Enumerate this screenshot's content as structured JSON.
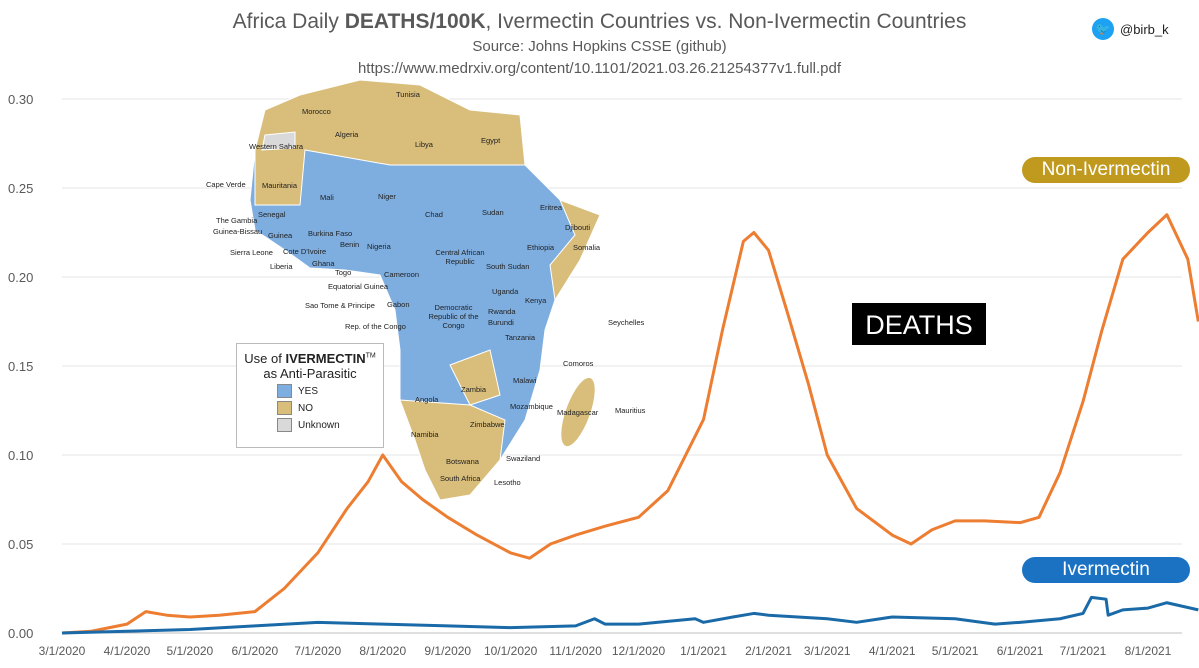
{
  "header": {
    "title_pre": "Africa Daily ",
    "title_bold": "DEATHS/100K",
    "title_post": ", Ivermectin Countries vs. Non-Ivermectin Countries",
    "source": "Source: Johns Hopkins CSSE (github)",
    "url": "https://www.medrxiv.org/content/10.1101/2021.03.26.21254377v1.full.pdf",
    "handle": "@birb_k",
    "handle_icon": "twitter-bird-icon"
  },
  "annotations": {
    "deaths_label": "DEATHS"
  },
  "map": {
    "legend": {
      "title_pre": "Use of ",
      "title_bold": "IVERMECTIN",
      "title_tm": "TM",
      "title_line2": "as Anti-Parasitic",
      "items": [
        {
          "label": "YES",
          "color": "#7eaee0"
        },
        {
          "label": "NO",
          "color": "#d9bd7a"
        },
        {
          "label": "Unknown",
          "color": "#d9d9d9"
        }
      ]
    },
    "labels": [
      "Tunisia",
      "Morocco",
      "Algeria",
      "Libya",
      "Egypt",
      "Western Sahara",
      "Mauritania",
      "Mali",
      "Niger",
      "Chad",
      "Sudan",
      "Eritrea",
      "Djibouti",
      "Cape Verde",
      "Senegal",
      "The Gambia",
      "Guinea-Bissau",
      "Guinea",
      "Sierra Leone",
      "Liberia",
      "Cote D'Ivoire",
      "Ghana",
      "Burkina Faso",
      "Benin",
      "Togo",
      "Nigeria",
      "Ethiopia",
      "Somalia",
      "Central African Republic",
      "South Sudan",
      "Cameroon",
      "Equatorial Guinea",
      "Sao Tome & Principe",
      "Gabon",
      "Rep. of the Congo",
      "Democratic Republic of the Congo",
      "Uganda",
      "Kenya",
      "Rwanda",
      "Burundi",
      "Tanzania",
      "Seychelles",
      "Comoros",
      "Angola",
      "Zambia",
      "Malawi",
      "Mozambique",
      "Madagascar",
      "Mauritius",
      "Namibia",
      "Zimbabwe",
      "Botswana",
      "Swaziland",
      "Lesotho",
      "South Africa"
    ]
  },
  "chart_data": {
    "type": "line",
    "title": "Africa Daily DEATHS/100K, Ivermectin Countries vs. Non-Ivermectin Countries",
    "xlabel": "",
    "ylabel": "",
    "ylim": [
      0,
      0.3
    ],
    "yticks": [
      "0.00",
      "0.05",
      "0.10",
      "0.15",
      "0.20",
      "0.25",
      "0.30"
    ],
    "xticks": [
      "3/1/2020",
      "4/1/2020",
      "5/1/2020",
      "6/1/2020",
      "7/1/2020",
      "8/1/2020",
      "9/1/2020",
      "10/1/2020",
      "11/1/2020",
      "12/1/2020",
      "1/1/2021",
      "2/1/2021",
      "3/1/2021",
      "4/1/2021",
      "5/1/2021",
      "6/1/2021",
      "7/1/2021",
      "8/1/2021"
    ],
    "grid": true,
    "series": [
      {
        "name": "Non-Ivermectin",
        "color": "#ed7d31",
        "label_color": "#c09a1f",
        "x": [
          "2020-03-01",
          "2020-03-15",
          "2020-04-01",
          "2020-04-10",
          "2020-04-20",
          "2020-05-01",
          "2020-05-15",
          "2020-06-01",
          "2020-06-15",
          "2020-07-01",
          "2020-07-15",
          "2020-07-25",
          "2020-08-01",
          "2020-08-10",
          "2020-08-20",
          "2020-09-01",
          "2020-09-15",
          "2020-10-01",
          "2020-10-10",
          "2020-10-20",
          "2020-11-01",
          "2020-11-15",
          "2020-12-01",
          "2020-12-15",
          "2021-01-01",
          "2021-01-10",
          "2021-01-20",
          "2021-01-25",
          "2021-02-01",
          "2021-02-10",
          "2021-02-20",
          "2021-03-01",
          "2021-03-15",
          "2021-04-01",
          "2021-04-10",
          "2021-04-20",
          "2021-05-01",
          "2021-05-15",
          "2021-06-01",
          "2021-06-10",
          "2021-06-20",
          "2021-07-01",
          "2021-07-10",
          "2021-07-20",
          "2021-08-01",
          "2021-08-10",
          "2021-08-20",
          "2021-08-25"
        ],
        "values": [
          0,
          0.001,
          0.005,
          0.012,
          0.01,
          0.009,
          0.01,
          0.012,
          0.025,
          0.045,
          0.07,
          0.085,
          0.1,
          0.085,
          0.075,
          0.065,
          0.055,
          0.045,
          0.042,
          0.05,
          0.055,
          0.06,
          0.065,
          0.08,
          0.12,
          0.17,
          0.22,
          0.225,
          0.215,
          0.18,
          0.14,
          0.1,
          0.07,
          0.055,
          0.05,
          0.058,
          0.063,
          0.063,
          0.062,
          0.065,
          0.09,
          0.13,
          0.17,
          0.21,
          0.225,
          0.235,
          0.21,
          0.175
        ]
      },
      {
        "name": "Ivermectin",
        "color": "#1a6aa8",
        "label_color": "#1b72c2",
        "x": [
          "2020-03-01",
          "2020-04-01",
          "2020-05-01",
          "2020-06-01",
          "2020-07-01",
          "2020-08-01",
          "2020-09-01",
          "2020-10-01",
          "2020-11-01",
          "2020-11-10",
          "2020-11-15",
          "2020-12-01",
          "2020-12-28",
          "2021-01-01",
          "2021-01-15",
          "2021-01-25",
          "2021-02-01",
          "2021-03-01",
          "2021-03-15",
          "2021-04-01",
          "2021-05-01",
          "2021-05-20",
          "2021-06-01",
          "2021-06-20",
          "2021-07-01",
          "2021-07-05",
          "2021-07-12",
          "2021-07-13",
          "2021-07-20",
          "2021-08-01",
          "2021-08-10",
          "2021-08-25"
        ],
        "values": [
          0,
          0.001,
          0.002,
          0.004,
          0.006,
          0.005,
          0.004,
          0.003,
          0.004,
          0.008,
          0.005,
          0.005,
          0.008,
          0.006,
          0.009,
          0.011,
          0.01,
          0.008,
          0.006,
          0.009,
          0.008,
          0.005,
          0.006,
          0.008,
          0.011,
          0.02,
          0.019,
          0.01,
          0.013,
          0.014,
          0.017,
          0.013
        ]
      }
    ]
  }
}
